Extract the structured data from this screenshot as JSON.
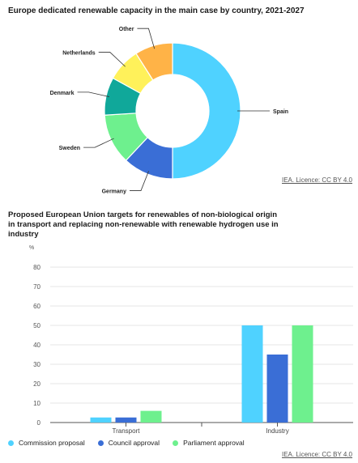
{
  "chart_data": [
    {
      "type": "pie",
      "title": "Europe dedicated renewable capacity in the main case by country, 2021-2027",
      "credit": "IEA. Licence: CC BY 4.0",
      "labels": [
        "Spain",
        "Germany",
        "Sweden",
        "Denmark",
        "Netherlands",
        "Other"
      ],
      "values": [
        50,
        12,
        12,
        9,
        8,
        9
      ],
      "colors": [
        "#4fd2ff",
        "#3a6ed6",
        "#6ef08e",
        "#10a89a",
        "#fff15a",
        "#ffb347"
      ]
    },
    {
      "type": "bar",
      "title": "Proposed European Union targets for renewables of non-biological origin in transport and replacing non-renewable with renewable hydrogen use in industry",
      "credit": "IEA. Licence: CC BY 4.0",
      "ylabel": "%",
      "ylim": [
        0,
        80
      ],
      "yticks": [
        0,
        10,
        20,
        30,
        40,
        50,
        60,
        70,
        80
      ],
      "categories": [
        "Transport",
        "Industry"
      ],
      "series": [
        {
          "name": "Commission proposal",
          "values": [
            2.6,
            50
          ],
          "color": "#4fd2ff"
        },
        {
          "name": "Council approval",
          "values": [
            2.6,
            35
          ],
          "color": "#3a6ed6"
        },
        {
          "name": "Parliament approval",
          "values": [
            6,
            50
          ],
          "color": "#6ef08e"
        }
      ]
    }
  ]
}
